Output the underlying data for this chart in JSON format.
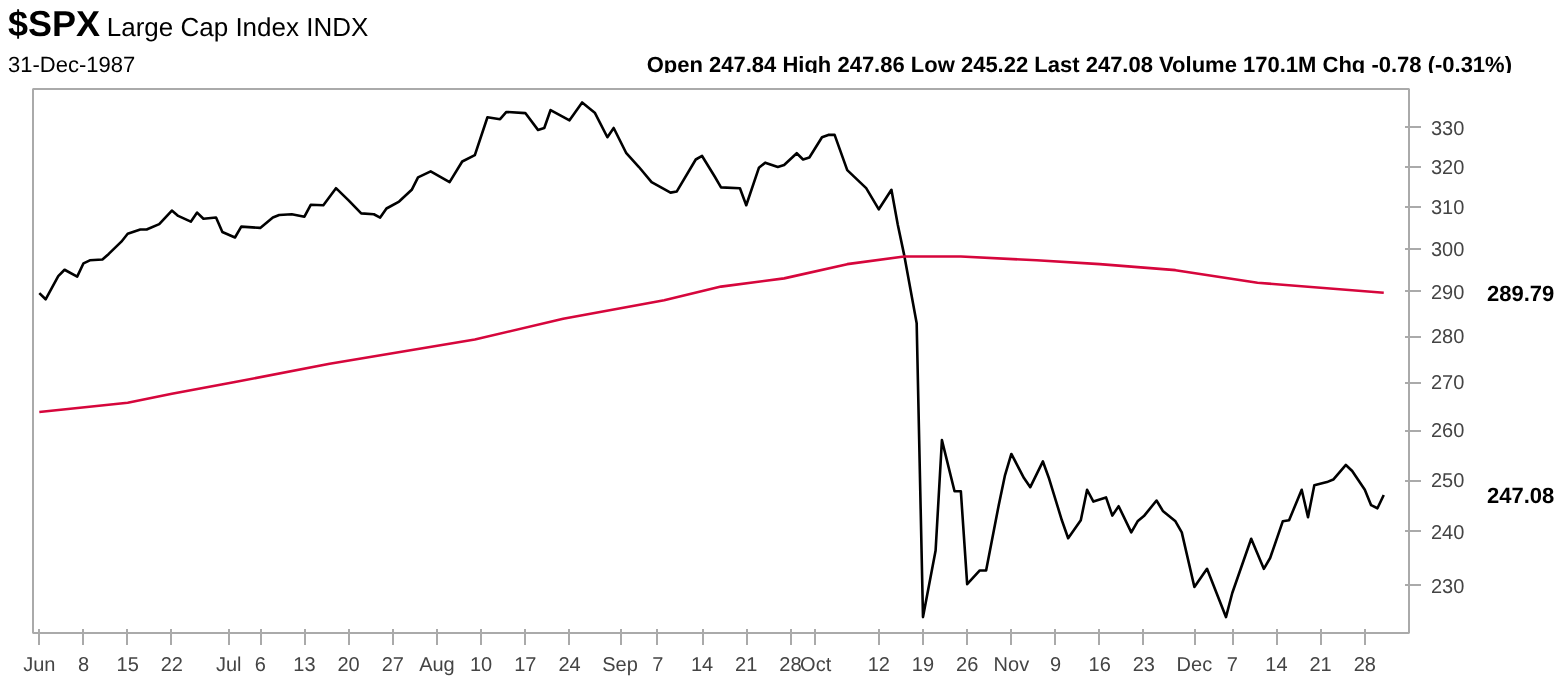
{
  "chart_data": {
    "type": "line",
    "title": "$SPX",
    "subtitle": "Large Cap Index INDX",
    "annotations": [
      "31-Dec-1987",
      "Open 247.84 High 247.86 Low 245.22 Last 247.08 Volume 170.1M Chg -0.78 (-0.31%)",
      "289.79",
      "247.08"
    ],
    "log": true,
    "xlim": [
      "1987-05-31",
      "1988-01-04"
    ],
    "xticks": [
      {
        "value": "1987-06-01",
        "label": "Jun"
      },
      {
        "value": "1987-06-08",
        "label": "8"
      },
      {
        "value": "1987-06-15",
        "label": "15"
      },
      {
        "value": "1987-06-22",
        "label": "22"
      },
      {
        "value": "1987-07-01",
        "label": "Jul"
      },
      {
        "value": "1987-07-06",
        "label": "6"
      },
      {
        "value": "1987-07-13",
        "label": "13"
      },
      {
        "value": "1987-07-20",
        "label": "20"
      },
      {
        "value": "1987-07-27",
        "label": "27"
      },
      {
        "value": "1987-08-03",
        "label": "Aug"
      },
      {
        "value": "1987-08-10",
        "label": "10"
      },
      {
        "value": "1987-08-17",
        "label": "17"
      },
      {
        "value": "1987-08-24",
        "label": "24"
      },
      {
        "value": "1987-09-01",
        "label": "Sep"
      },
      {
        "value": "1987-09-07",
        "label": "7"
      },
      {
        "value": "1987-09-14",
        "label": "14"
      },
      {
        "value": "1987-09-21",
        "label": "21"
      },
      {
        "value": "1987-09-28",
        "label": "28"
      },
      {
        "value": "1987-10-02",
        "label": "Oct"
      },
      {
        "value": "1987-10-12",
        "label": "12"
      },
      {
        "value": "1987-10-19",
        "label": "19"
      },
      {
        "value": "1987-10-26",
        "label": "26"
      },
      {
        "value": "1987-11-02",
        "label": "Nov"
      },
      {
        "value": "1987-11-09",
        "label": "9"
      },
      {
        "value": "1987-11-16",
        "label": "16"
      },
      {
        "value": "1987-11-23",
        "label": "23"
      },
      {
        "value": "1987-12-01",
        "label": "Dec"
      },
      {
        "value": "1987-12-07",
        "label": "7"
      },
      {
        "value": "1987-12-14",
        "label": "14"
      },
      {
        "value": "1987-12-21",
        "label": "21"
      },
      {
        "value": "1987-12-28",
        "label": "28"
      }
    ],
    "ylim": [
      221.6,
      340.3
    ],
    "yticks": [
      230,
      240,
      250,
      260,
      270,
      280,
      290,
      300,
      310,
      320,
      330
    ],
    "series": [
      {
        "color": "#000000",
        "x": [
          "1987-06-01",
          "1987-06-02",
          "1987-06-04",
          "1987-06-05",
          "1987-06-07",
          "1987-06-08",
          "1987-06-09",
          "1987-06-11",
          "1987-06-12",
          "1987-06-14",
          "1987-06-15",
          "1987-06-17",
          "1987-06-18",
          "1987-06-20",
          "1987-06-22",
          "1987-06-23",
          "1987-06-25",
          "1987-06-26",
          "1987-06-27",
          "1987-06-29",
          "1987-06-30",
          "1987-07-02",
          "1987-07-03",
          "1987-07-06",
          "1987-07-08",
          "1987-07-09",
          "1987-07-11",
          "1987-07-13",
          "1987-07-14",
          "1987-07-16",
          "1987-07-18",
          "1987-07-20",
          "1987-07-22",
          "1987-07-24",
          "1987-07-25",
          "1987-07-26",
          "1987-07-28",
          "1987-07-30",
          "1987-07-31",
          "1987-08-02",
          "1987-08-05",
          "1987-08-07",
          "1987-08-09",
          "1987-08-11",
          "1987-08-13",
          "1987-08-14",
          "1987-08-17",
          "1987-08-19",
          "1987-08-20",
          "1987-08-21",
          "1987-08-24",
          "1987-08-26",
          "1987-08-28",
          "1987-08-30",
          "1987-08-31",
          "1987-09-02",
          "1987-09-04",
          "1987-09-06",
          "1987-09-09",
          "1987-09-10",
          "1987-09-13",
          "1987-09-14",
          "1987-09-16",
          "1987-09-17",
          "1987-09-20",
          "1987-09-21",
          "1987-09-23",
          "1987-09-24",
          "1987-09-26",
          "1987-09-27",
          "1987-09-29",
          "1987-09-30",
          "1987-10-01",
          "1987-10-03",
          "1987-10-04",
          "1987-10-05",
          "1987-10-07",
          "1987-10-08",
          "1987-10-10",
          "1987-10-12",
          "1987-10-14",
          "1987-10-15",
          "1987-10-16",
          "1987-10-18",
          "1987-10-19",
          "1987-10-21",
          "1987-10-22",
          "1987-10-24",
          "1987-10-25",
          "1987-10-26",
          "1987-10-28",
          "1987-10-29",
          "1987-10-31",
          "1987-11-01",
          "1987-11-02",
          "1987-11-04",
          "1987-11-05",
          "1987-11-07",
          "1987-11-08",
          "1987-11-10",
          "1987-11-11",
          "1987-11-13",
          "1987-11-14",
          "1987-11-15",
          "1987-11-17",
          "1987-11-18",
          "1987-11-19",
          "1987-11-21",
          "1987-11-22",
          "1987-11-23",
          "1987-11-25",
          "1987-11-26",
          "1987-11-28",
          "1987-11-29",
          "1987-12-01",
          "1987-12-03",
          "1987-12-06",
          "1987-12-07",
          "1987-12-10",
          "1987-12-12",
          "1987-12-13",
          "1987-12-15",
          "1987-12-16",
          "1987-12-18",
          "1987-12-19",
          "1987-12-20",
          "1987-12-22",
          "1987-12-23",
          "1987-12-25",
          "1987-12-26",
          "1987-12-28",
          "1987-12-29",
          "1987-12-30",
          "1987-12-31"
        ],
        "values": [
          289.7,
          288.3,
          293.6,
          295.1,
          293.5,
          296.6,
          297.3,
          297.5,
          298.8,
          301.7,
          303.6,
          304.6,
          304.6,
          305.9,
          309.2,
          307.9,
          306.5,
          308.7,
          307.2,
          307.5,
          304.0,
          302.7,
          305.3,
          305.0,
          307.5,
          308.1,
          308.3,
          307.7,
          310.6,
          310.5,
          314.7,
          311.7,
          308.5,
          308.3,
          307.5,
          309.7,
          311.4,
          314.3,
          317.4,
          318.9,
          316.2,
          321.4,
          323.0,
          332.8,
          332.3,
          334.2,
          333.9,
          329.5,
          330.0,
          334.7,
          332.0,
          336.7,
          334.0,
          327.6,
          330.0,
          323.5,
          320.0,
          316.2,
          313.6,
          313.9,
          321.9,
          322.8,
          317.6,
          314.9,
          314.7,
          310.5,
          319.8,
          321.1,
          320.0,
          320.5,
          323.5,
          321.9,
          322.4,
          327.6,
          328.2,
          328.2,
          319.2,
          317.7,
          314.7,
          309.5,
          314.3,
          305.8,
          298.7,
          282.9,
          224.4,
          236.5,
          258.0,
          247.8,
          247.8,
          230.3,
          232.8,
          232.8,
          245.1,
          251.0,
          255.2,
          250.4,
          248.6,
          253.7,
          250.2,
          242.2,
          238.8,
          242.2,
          248.1,
          245.8,
          246.6,
          243.1,
          244.9,
          239.9,
          242.0,
          243.0,
          246.0,
          244.0,
          242.0,
          239.9,
          229.8,
          233.1,
          224.4,
          228.7,
          238.7,
          233.1,
          235.1,
          242.0,
          242.2,
          248.1,
          242.8,
          249.0,
          249.6,
          250.1,
          253.0,
          251.8,
          248.1,
          245.1,
          244.5,
          247.08
        ]
      },
      {
        "color": "#d6063c",
        "x": [
          "1987-06-01",
          "1987-06-15",
          "1987-06-22",
          "1987-07-02",
          "1987-07-17",
          "1987-08-09",
          "1987-08-23",
          "1987-09-08",
          "1987-09-17",
          "1987-09-27",
          "1987-10-07",
          "1987-10-16",
          "1987-10-25",
          "1987-11-06",
          "1987-11-16",
          "1987-11-28",
          "1987-12-11",
          "1987-12-31"
        ],
        "values": [
          263.8,
          265.7,
          267.6,
          270.1,
          274.0,
          279.3,
          283.9,
          288.1,
          291.2,
          293.1,
          296.4,
          298.2,
          298.2,
          297.3,
          296.4,
          295.0,
          292.1,
          289.79
        ]
      }
    ]
  }
}
